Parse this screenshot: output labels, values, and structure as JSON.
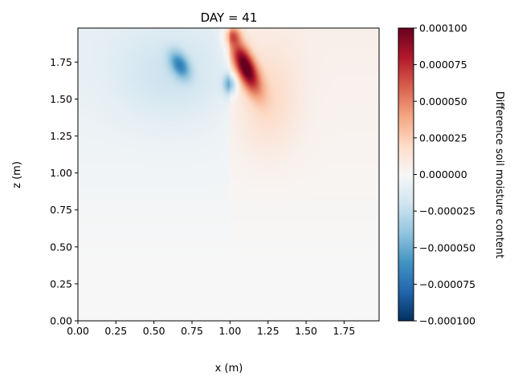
{
  "chart_data": {
    "type": "heatmap",
    "title": "DAY = 41",
    "xlabel": "x (m)",
    "ylabel": "z (m)",
    "xlim": [
      0.0,
      1.98
    ],
    "ylim": [
      0.0,
      1.98
    ],
    "xticks": [
      0.0,
      0.25,
      0.5,
      0.75,
      1.0,
      1.25,
      1.5,
      1.75
    ],
    "xtick_labels": [
      "0.00",
      "0.25",
      "0.50",
      "0.75",
      "1.00",
      "1.25",
      "1.50",
      "1.75"
    ],
    "yticks": [
      0.0,
      0.25,
      0.5,
      0.75,
      1.0,
      1.25,
      1.5,
      1.75
    ],
    "ytick_labels": [
      "0.00",
      "0.25",
      "0.50",
      "0.75",
      "1.00",
      "1.25",
      "1.50",
      "1.75"
    ],
    "colorbar": {
      "label": "Difference soil moisture content",
      "colormap": "RdBu_r",
      "vmin": -0.0001,
      "vmax": 0.0001,
      "ticks": [
        0.0001,
        7.5e-05,
        5e-05,
        2.5e-05,
        0.0,
        -2.5e-05,
        -5e-05,
        -7.5e-05,
        -0.0001
      ],
      "tick_labels": [
        "0.000100",
        "0.000075",
        "0.000050",
        "0.000025",
        "0.000000",
        "−0.000025",
        "−0.000050",
        "−0.000075",
        "−0.000100"
      ]
    },
    "features": [
      {
        "kind": "positive",
        "x": 1.1,
        "z": 1.72,
        "sx": 0.07,
        "sz": 0.17,
        "amplitude": 0.0001,
        "shear": 0.35
      },
      {
        "kind": "positive",
        "x": 1.02,
        "z": 1.93,
        "sx": 0.05,
        "sz": 0.06,
        "amplitude": 4e-05,
        "shear": 0.0
      },
      {
        "kind": "negative",
        "x": 0.67,
        "z": 1.73,
        "sx": 0.06,
        "sz": 0.09,
        "amplitude": -5e-05,
        "shear": 0.3
      },
      {
        "kind": "negative",
        "x": 1.0,
        "z": 1.6,
        "sx": 0.045,
        "sz": 0.07,
        "amplitude": -4.5e-05,
        "shear": 0.0
      }
    ]
  }
}
